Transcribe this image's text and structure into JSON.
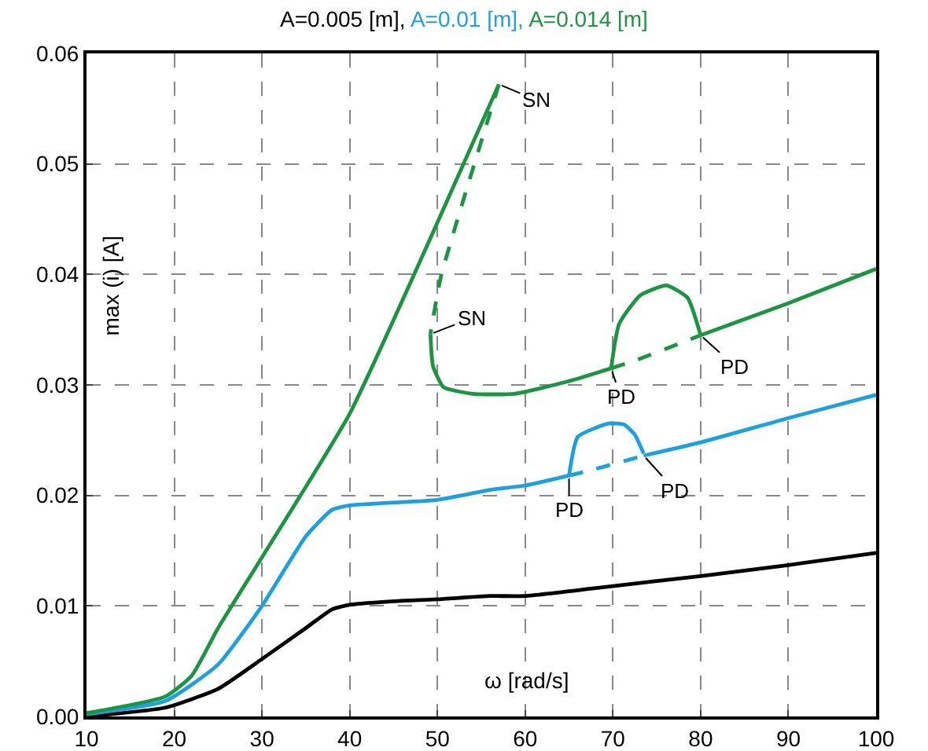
{
  "chart_data": {
    "type": "line",
    "xlabel": "ω [rad/s]",
    "ylabel": "max (i) [A]",
    "xlim": [
      10,
      100
    ],
    "xticks": [
      10,
      20,
      30,
      40,
      50,
      60,
      70,
      80,
      90,
      100
    ],
    "ylim": [
      0,
      0.06
    ],
    "yticks": [
      {
        "value": 0,
        "label": "0.00"
      },
      0.01,
      0.02,
      0.03,
      0.04,
      0.05,
      0.06
    ],
    "grid": true,
    "marker": "none",
    "series": [
      {
        "name": "A=0.005 [m],",
        "color": "#000000",
        "line_style": "solid",
        "x": [
          10,
          19,
          25,
          30,
          35,
          38,
          40,
          46.8,
          50,
          56,
          60,
          70,
          80,
          90,
          100
        ],
        "values": [
          0,
          0.0008,
          0.0025,
          0.0052,
          0.008,
          0.0097,
          0.0101,
          0.0105,
          0.0106,
          0.0109,
          0.0109,
          0.0118,
          0.0127,
          0.0137,
          0.0148
        ]
      },
      {
        "name": "A=0.01 [m],",
        "color": "#1ba1e2",
        "line_style": "solid",
        "x": [
          10,
          19,
          25,
          30,
          35,
          38,
          40,
          50,
          56,
          60,
          65
        ],
        "values": [
          0.0002,
          0.0014,
          0.0047,
          0.01,
          0.0163,
          0.0187,
          0.0191,
          0.0196,
          0.0205,
          0.0209,
          0.0218
        ]
      },
      {
        "color": "#1ba1e2",
        "line_style": "solid",
        "x": [
          65,
          66,
          69.5,
          71.3,
          72.5,
          73.5
        ],
        "values": [
          0.0218,
          0.0253,
          0.0265,
          0.0264,
          0.0255,
          0.0238
        ]
      },
      {
        "color": "#1ba1e2",
        "line_style": "dashed",
        "x": [
          65,
          67.1,
          73.5
        ],
        "values": [
          0.0218,
          0.0222,
          0.0236
        ]
      },
      {
        "color": "#1ba1e2",
        "line_style": "solid",
        "x": [
          73.5,
          80,
          90,
          100
        ],
        "values": [
          0.0236,
          0.0248,
          0.027,
          0.0291
        ]
      },
      {
        "name": "A=0.014 [m]",
        "color": "#1a9641",
        "line_style": "solid",
        "x": [
          10,
          19,
          22,
          25,
          30,
          40,
          50,
          57
        ],
        "values": [
          0.0003,
          0.0018,
          0.0037,
          0.008,
          0.0144,
          0.0274,
          0.0447,
          0.0572
        ]
      },
      {
        "color": "#1a9641",
        "line_style": "dashed",
        "x": [
          57,
          50.4,
          49.2
        ],
        "values": [
          0.0572,
          0.0398,
          0.0346
        ]
      },
      {
        "color": "#1a9641",
        "line_style": "solid",
        "x": [
          49.2,
          49.5,
          50.7,
          54,
          58.8,
          64.8,
          69.8
        ],
        "values": [
          0.0346,
          0.0317,
          0.0298,
          0.0292,
          0.0292,
          0.0303,
          0.0315
        ]
      },
      {
        "color": "#1a9641",
        "line_style": "solid",
        "x": [
          69.8,
          70.7,
          73.1,
          76.1,
          78.5,
          80
        ],
        "values": [
          0.0315,
          0.0355,
          0.0381,
          0.039,
          0.0379,
          0.0345
        ]
      },
      {
        "color": "#1a9641",
        "line_style": "dashed",
        "x": [
          69.8,
          72.5,
          80
        ],
        "values": [
          0.0315,
          0.0322,
          0.0345
        ]
      },
      {
        "color": "#1a9641",
        "line_style": "solid",
        "x": [
          80,
          90,
          100
        ],
        "values": [
          0.0345,
          0.0374,
          0.0405
        ]
      }
    ],
    "annotations": [
      {
        "text": "SN",
        "x": 57,
        "y": 0.0572
      },
      {
        "text": "SN",
        "x": 49.2,
        "y": 0.0346
      },
      {
        "text": "PD",
        "x": 69.8,
        "y": 0.0315
      },
      {
        "text": "PD",
        "x": 80,
        "y": 0.0345
      },
      {
        "text": "PD",
        "x": 65,
        "y": 0.0218
      },
      {
        "text": "PD",
        "x": 73.5,
        "y": 0.0236
      }
    ]
  }
}
